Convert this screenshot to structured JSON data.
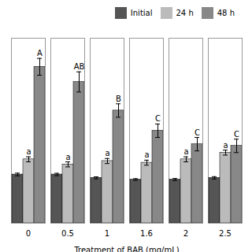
{
  "chart_data": {
    "type": "bar",
    "xlabel": "Treatment of BAB (mg/mL)",
    "categories": [
      "0",
      "0.5",
      "1",
      "1.6",
      "2",
      "2.5"
    ],
    "series": [
      {
        "name": "Initial",
        "color": "#555555",
        "values": [
          0.29,
          0.29,
          0.27,
          0.26,
          0.26,
          0.27
        ],
        "errors": [
          0.008,
          0.007,
          0.006,
          0.005,
          0.006,
          0.007
        ]
      },
      {
        "name": "24 h",
        "color": "#bbbbbb",
        "values": [
          0.38,
          0.35,
          0.37,
          0.36,
          0.38,
          0.42
        ],
        "errors": [
          0.015,
          0.015,
          0.015,
          0.015,
          0.015,
          0.015
        ],
        "labels": [
          "a",
          "a",
          "a",
          "a",
          "a",
          "a"
        ]
      },
      {
        "name": "48 h",
        "color": "#888888",
        "values": [
          0.93,
          0.84,
          0.67,
          0.55,
          0.47,
          0.46
        ],
        "errors": [
          0.05,
          0.06,
          0.04,
          0.04,
          0.04,
          0.04
        ],
        "labels": [
          "A",
          "AB",
          "B",
          "C",
          "C",
          "C"
        ]
      }
    ],
    "ylim": [
      0,
      1.1
    ],
    "grid": false,
    "legend": "upper right",
    "tick_labels": "x"
  }
}
